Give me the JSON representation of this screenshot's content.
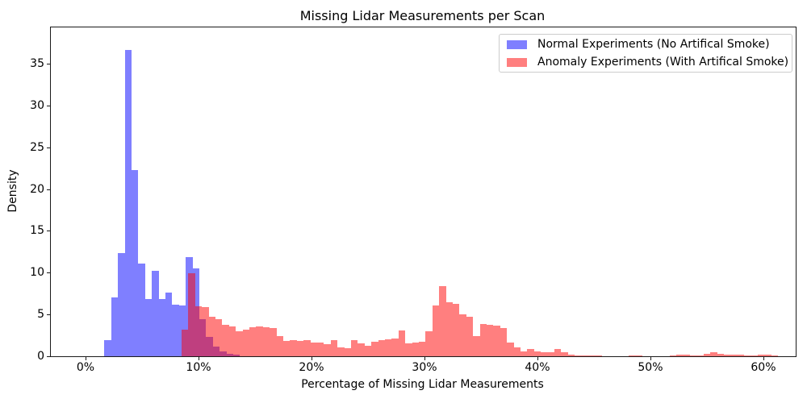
{
  "figure": {
    "background": "#ffffff",
    "text_color": "#000000",
    "spine_color": "#1a1a1a"
  },
  "chart_data": {
    "type": "histogram",
    "title": "Missing Lidar Measurements per Scan",
    "xlabel": "Percentage of Missing Lidar Measurements",
    "ylabel": "Density",
    "grid": false,
    "legend_position": "upper right",
    "xlim_pct": [
      -3.07,
      62.86
    ],
    "ylim": [
      0,
      39.34
    ],
    "xticks": [
      {
        "value": 0,
        "label": "0%"
      },
      {
        "value": 10,
        "label": "10%"
      },
      {
        "value": 20,
        "label": "20%"
      },
      {
        "value": 30,
        "label": "30%"
      },
      {
        "value": 40,
        "label": "40%"
      },
      {
        "value": 50,
        "label": "50%"
      },
      {
        "value": 60,
        "label": "60%"
      }
    ],
    "yticks": [
      {
        "value": 0,
        "label": "0"
      },
      {
        "value": 5,
        "label": "5"
      },
      {
        "value": 10,
        "label": "10"
      },
      {
        "value": 15,
        "label": "15"
      },
      {
        "value": 20,
        "label": "20"
      },
      {
        "value": 25,
        "label": "25"
      },
      {
        "value": 30,
        "label": "30"
      },
      {
        "value": 35,
        "label": "35"
      }
    ],
    "series": [
      {
        "name": "Normal Experiments (No Artifical Smoke)",
        "color": "rgba(0,0,255,0.5)",
        "bin_start_pct": 1.68,
        "bin_width_pct": 0.6,
        "densities": [
          1.9,
          7.0,
          12.3,
          36.6,
          22.3,
          11.1,
          6.8,
          10.2,
          6.8,
          7.6,
          6.2,
          6.1,
          11.9,
          10.5,
          4.4,
          2.3,
          1.2,
          0.6,
          0.3,
          0.15
        ]
      },
      {
        "name": "Anomaly Experiments (With Artifical Smoke)",
        "color": "rgba(255,0,0,0.5)",
        "bin_start_pct": 8.5,
        "bin_width_pct": 0.6,
        "densities": [
          3.2,
          9.9,
          6.0,
          5.9,
          4.7,
          4.4,
          3.8,
          3.6,
          3.0,
          3.2,
          3.5,
          3.6,
          3.5,
          3.4,
          2.4,
          1.8,
          1.9,
          1.8,
          1.9,
          1.6,
          1.6,
          1.4,
          1.9,
          1.1,
          1.0,
          1.9,
          1.5,
          1.3,
          1.7,
          1.9,
          2.0,
          2.1,
          3.1,
          1.5,
          1.6,
          1.7,
          3.0,
          6.1,
          8.4,
          6.5,
          6.3,
          5.0,
          4.7,
          2.4,
          3.9,
          3.8,
          3.7,
          3.4,
          1.6,
          1.1,
          0.6,
          0.85,
          0.6,
          0.45,
          0.5,
          0.9,
          0.45,
          0.15,
          0.05,
          0.05,
          0.12,
          0.05,
          0,
          0,
          0,
          0,
          0.1,
          0.05,
          0,
          0,
          0,
          0,
          0.12,
          0.18,
          0.15,
          0.1,
          0.05,
          0.25,
          0.45,
          0.25,
          0.15,
          0.15,
          0.2,
          0.1,
          0.05,
          0.2,
          0.15,
          0.05
        ]
      }
    ]
  }
}
